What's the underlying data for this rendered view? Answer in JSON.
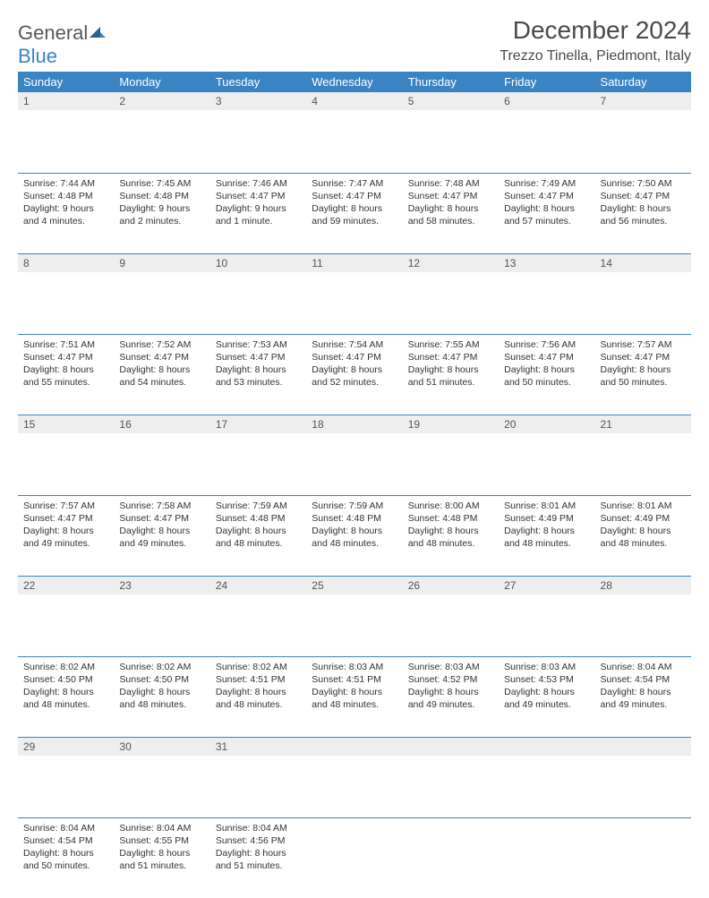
{
  "brand": {
    "part1": "General",
    "part2": "Blue"
  },
  "title": "December 2024",
  "location": "Trezzo Tinella, Piedmont, Italy",
  "colors": {
    "header_bg": "#3b84c4",
    "header_fg": "#ffffff",
    "daynum_bg": "#eeeeee",
    "text": "#333333",
    "rule": "#3b84c4"
  },
  "weekdays": [
    "Sunday",
    "Monday",
    "Tuesday",
    "Wednesday",
    "Thursday",
    "Friday",
    "Saturday"
  ],
  "weeks": [
    [
      {
        "n": "1",
        "sr": "Sunrise: 7:44 AM",
        "ss": "Sunset: 4:48 PM",
        "dl": "Daylight: 9 hours and 4 minutes."
      },
      {
        "n": "2",
        "sr": "Sunrise: 7:45 AM",
        "ss": "Sunset: 4:48 PM",
        "dl": "Daylight: 9 hours and 2 minutes."
      },
      {
        "n": "3",
        "sr": "Sunrise: 7:46 AM",
        "ss": "Sunset: 4:47 PM",
        "dl": "Daylight: 9 hours and 1 minute."
      },
      {
        "n": "4",
        "sr": "Sunrise: 7:47 AM",
        "ss": "Sunset: 4:47 PM",
        "dl": "Daylight: 8 hours and 59 minutes."
      },
      {
        "n": "5",
        "sr": "Sunrise: 7:48 AM",
        "ss": "Sunset: 4:47 PM",
        "dl": "Daylight: 8 hours and 58 minutes."
      },
      {
        "n": "6",
        "sr": "Sunrise: 7:49 AM",
        "ss": "Sunset: 4:47 PM",
        "dl": "Daylight: 8 hours and 57 minutes."
      },
      {
        "n": "7",
        "sr": "Sunrise: 7:50 AM",
        "ss": "Sunset: 4:47 PM",
        "dl": "Daylight: 8 hours and 56 minutes."
      }
    ],
    [
      {
        "n": "8",
        "sr": "Sunrise: 7:51 AM",
        "ss": "Sunset: 4:47 PM",
        "dl": "Daylight: 8 hours and 55 minutes."
      },
      {
        "n": "9",
        "sr": "Sunrise: 7:52 AM",
        "ss": "Sunset: 4:47 PM",
        "dl": "Daylight: 8 hours and 54 minutes."
      },
      {
        "n": "10",
        "sr": "Sunrise: 7:53 AM",
        "ss": "Sunset: 4:47 PM",
        "dl": "Daylight: 8 hours and 53 minutes."
      },
      {
        "n": "11",
        "sr": "Sunrise: 7:54 AM",
        "ss": "Sunset: 4:47 PM",
        "dl": "Daylight: 8 hours and 52 minutes."
      },
      {
        "n": "12",
        "sr": "Sunrise: 7:55 AM",
        "ss": "Sunset: 4:47 PM",
        "dl": "Daylight: 8 hours and 51 minutes."
      },
      {
        "n": "13",
        "sr": "Sunrise: 7:56 AM",
        "ss": "Sunset: 4:47 PM",
        "dl": "Daylight: 8 hours and 50 minutes."
      },
      {
        "n": "14",
        "sr": "Sunrise: 7:57 AM",
        "ss": "Sunset: 4:47 PM",
        "dl": "Daylight: 8 hours and 50 minutes."
      }
    ],
    [
      {
        "n": "15",
        "sr": "Sunrise: 7:57 AM",
        "ss": "Sunset: 4:47 PM",
        "dl": "Daylight: 8 hours and 49 minutes."
      },
      {
        "n": "16",
        "sr": "Sunrise: 7:58 AM",
        "ss": "Sunset: 4:47 PM",
        "dl": "Daylight: 8 hours and 49 minutes."
      },
      {
        "n": "17",
        "sr": "Sunrise: 7:59 AM",
        "ss": "Sunset: 4:48 PM",
        "dl": "Daylight: 8 hours and 48 minutes."
      },
      {
        "n": "18",
        "sr": "Sunrise: 7:59 AM",
        "ss": "Sunset: 4:48 PM",
        "dl": "Daylight: 8 hours and 48 minutes."
      },
      {
        "n": "19",
        "sr": "Sunrise: 8:00 AM",
        "ss": "Sunset: 4:48 PM",
        "dl": "Daylight: 8 hours and 48 minutes."
      },
      {
        "n": "20",
        "sr": "Sunrise: 8:01 AM",
        "ss": "Sunset: 4:49 PM",
        "dl": "Daylight: 8 hours and 48 minutes."
      },
      {
        "n": "21",
        "sr": "Sunrise: 8:01 AM",
        "ss": "Sunset: 4:49 PM",
        "dl": "Daylight: 8 hours and 48 minutes."
      }
    ],
    [
      {
        "n": "22",
        "sr": "Sunrise: 8:02 AM",
        "ss": "Sunset: 4:50 PM",
        "dl": "Daylight: 8 hours and 48 minutes."
      },
      {
        "n": "23",
        "sr": "Sunrise: 8:02 AM",
        "ss": "Sunset: 4:50 PM",
        "dl": "Daylight: 8 hours and 48 minutes."
      },
      {
        "n": "24",
        "sr": "Sunrise: 8:02 AM",
        "ss": "Sunset: 4:51 PM",
        "dl": "Daylight: 8 hours and 48 minutes."
      },
      {
        "n": "25",
        "sr": "Sunrise: 8:03 AM",
        "ss": "Sunset: 4:51 PM",
        "dl": "Daylight: 8 hours and 48 minutes."
      },
      {
        "n": "26",
        "sr": "Sunrise: 8:03 AM",
        "ss": "Sunset: 4:52 PM",
        "dl": "Daylight: 8 hours and 49 minutes."
      },
      {
        "n": "27",
        "sr": "Sunrise: 8:03 AM",
        "ss": "Sunset: 4:53 PM",
        "dl": "Daylight: 8 hours and 49 minutes."
      },
      {
        "n": "28",
        "sr": "Sunrise: 8:04 AM",
        "ss": "Sunset: 4:54 PM",
        "dl": "Daylight: 8 hours and 49 minutes."
      }
    ],
    [
      {
        "n": "29",
        "sr": "Sunrise: 8:04 AM",
        "ss": "Sunset: 4:54 PM",
        "dl": "Daylight: 8 hours and 50 minutes."
      },
      {
        "n": "30",
        "sr": "Sunrise: 8:04 AM",
        "ss": "Sunset: 4:55 PM",
        "dl": "Daylight: 8 hours and 51 minutes."
      },
      {
        "n": "31",
        "sr": "Sunrise: 8:04 AM",
        "ss": "Sunset: 4:56 PM",
        "dl": "Daylight: 8 hours and 51 minutes."
      },
      null,
      null,
      null,
      null
    ]
  ]
}
